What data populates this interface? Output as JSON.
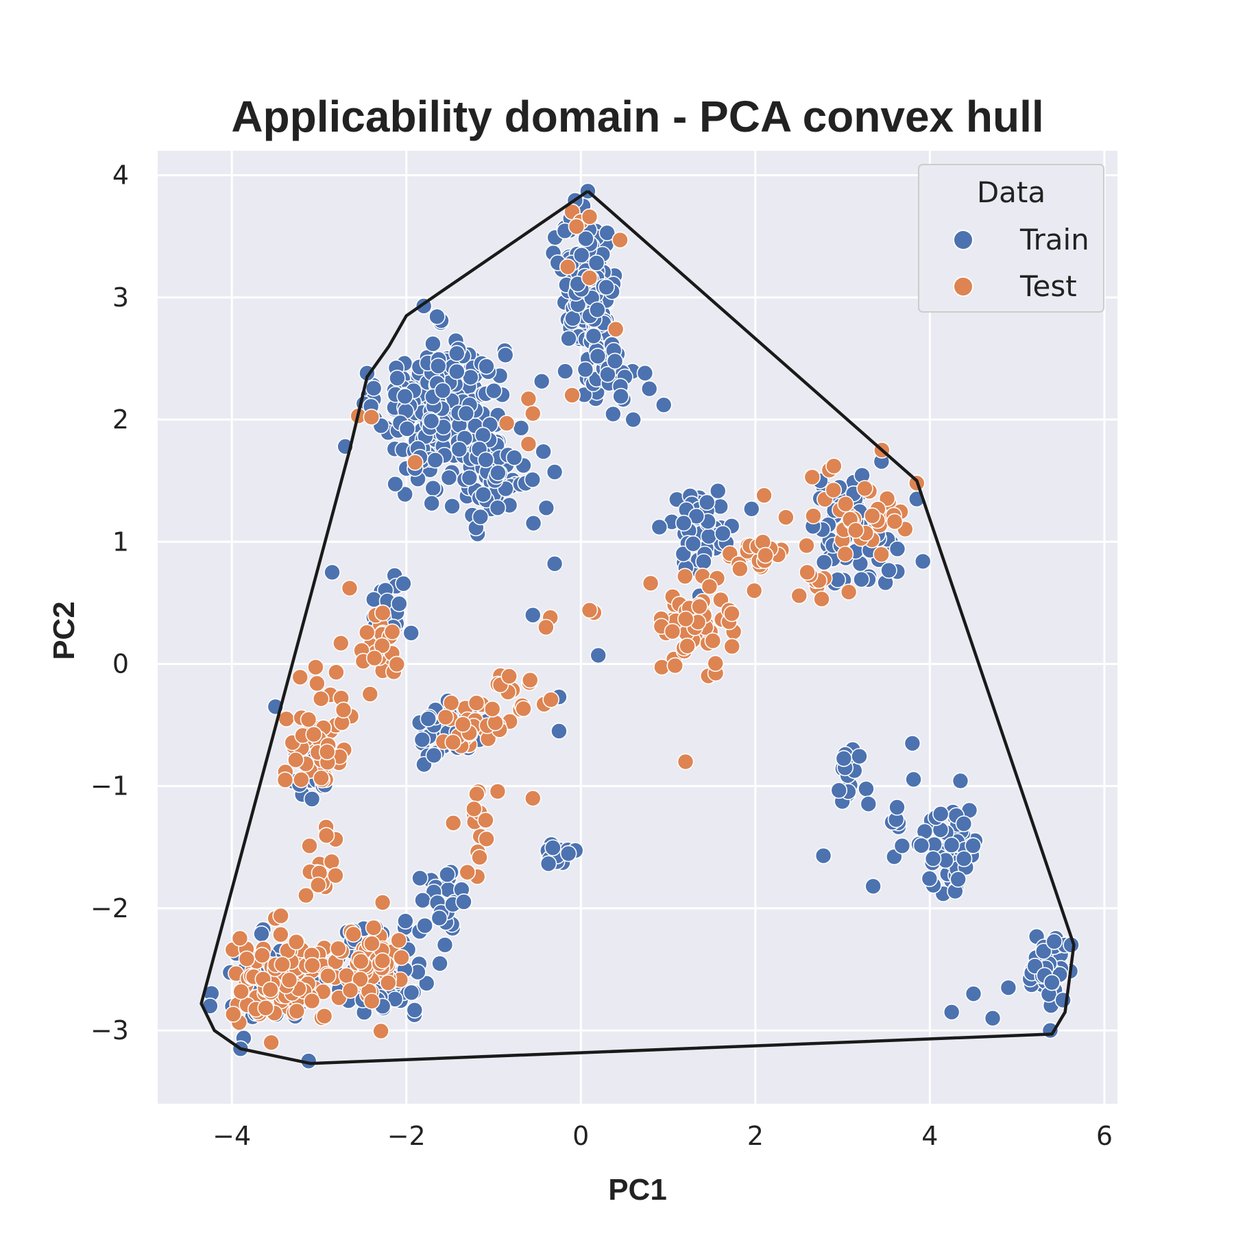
{
  "chart_data": {
    "type": "scatter",
    "title": "Applicability domain - PCA convex hull",
    "xlabel": "PC1",
    "ylabel": "PC2",
    "xlim": [
      -4.85,
      6.15
    ],
    "ylim": [
      -3.6,
      4.2
    ],
    "xticks": [
      -4,
      -2,
      0,
      2,
      4,
      6
    ],
    "xtick_labels": [
      "−4",
      "−2",
      "0",
      "2",
      "4",
      "6"
    ],
    "yticks": [
      -3,
      -2,
      -1,
      0,
      1,
      2,
      3,
      4
    ],
    "ytick_labels": [
      "−3",
      "−2",
      "−1",
      "0",
      "1",
      "2",
      "3",
      "4"
    ],
    "grid": true,
    "background_color": "#eaeaf2",
    "legend": {
      "title": "Data",
      "placement": "top-right",
      "entries": [
        {
          "label": "Train",
          "color": "#4c72b0"
        },
        {
          "label": "Test",
          "color": "#dd8452"
        }
      ]
    },
    "hull": [
      [
        0.08,
        3.87
      ],
      [
        3.85,
        1.5
      ],
      [
        5.65,
        -2.3
      ],
      [
        5.55,
        -2.85
      ],
      [
        5.4,
        -3.03
      ],
      [
        -3.1,
        -3.27
      ],
      [
        -3.9,
        -3.15
      ],
      [
        -4.2,
        -3.0
      ],
      [
        -4.35,
        -2.78
      ],
      [
        -2.65,
        1.75
      ],
      [
        -2.45,
        2.35
      ],
      [
        -2.2,
        2.6
      ],
      [
        -2.0,
        2.85
      ],
      [
        -1.8,
        2.95
      ]
    ],
    "series": [
      {
        "name": "Train",
        "color": "#4c72b0",
        "clusters": [
          {
            "center": [
              -1.6,
              2.1
            ],
            "spread": [
              0.65,
              0.5
            ],
            "count": 260
          },
          {
            "center": [
              -1.0,
              1.5
            ],
            "spread": [
              0.5,
              0.4
            ],
            "count": 60
          },
          {
            "center": [
              0.1,
              3.1
            ],
            "spread": [
              0.28,
              0.45
            ],
            "count": 170
          },
          {
            "center": [
              0.3,
              2.4
            ],
            "spread": [
              0.3,
              0.3
            ],
            "count": 45
          },
          {
            "center": [
              1.4,
              1.1
            ],
            "spread": [
              0.35,
              0.3
            ],
            "count": 55
          },
          {
            "center": [
              3.1,
              1.1
            ],
            "spread": [
              0.45,
              0.4
            ],
            "count": 60
          },
          {
            "center": [
              -2.2,
              0.45
            ],
            "spread": [
              0.2,
              0.3
            ],
            "count": 20
          },
          {
            "center": [
              -1.5,
              -0.55
            ],
            "spread": [
              0.35,
              0.2
            ],
            "count": 45
          },
          {
            "center": [
              -0.25,
              -1.55
            ],
            "spread": [
              0.12,
              0.15
            ],
            "count": 18
          },
          {
            "center": [
              -2.3,
              -2.5
            ],
            "spread": [
              0.6,
              0.35
            ],
            "count": 70
          },
          {
            "center": [
              -3.6,
              -2.6
            ],
            "spread": [
              0.5,
              0.3
            ],
            "count": 40
          },
          {
            "center": [
              -1.6,
              -2.0
            ],
            "spread": [
              0.3,
              0.35
            ],
            "count": 25
          },
          {
            "center": [
              4.3,
              -1.5
            ],
            "spread": [
              0.25,
              0.35
            ],
            "count": 50
          },
          {
            "center": [
              5.35,
              -2.5
            ],
            "spread": [
              0.18,
              0.2
            ],
            "count": 70
          },
          {
            "center": [
              3.1,
              -0.9
            ],
            "spread": [
              0.2,
              0.3
            ],
            "count": 18
          },
          {
            "center": [
              3.7,
              -1.4
            ],
            "spread": [
              0.3,
              0.35
            ],
            "count": 15
          },
          {
            "center": [
              -3.1,
              -0.9
            ],
            "spread": [
              0.25,
              0.25
            ],
            "count": 25
          }
        ],
        "points": [
          [
            0.08,
            3.87
          ],
          [
            -1.8,
            2.93
          ],
          [
            -2.45,
            2.38
          ],
          [
            -2.7,
            1.78
          ],
          [
            -2.0,
            1.6
          ],
          [
            0.95,
            2.12
          ],
          [
            0.6,
            2.0
          ],
          [
            0.2,
            0.07
          ],
          [
            -0.25,
            -0.27
          ],
          [
            -0.25,
            -0.55
          ],
          [
            -3.5,
            -0.35
          ],
          [
            -0.55,
            0.4
          ],
          [
            -0.3,
            0.82
          ],
          [
            0.9,
            1.12
          ],
          [
            3.92,
            0.84
          ],
          [
            3.85,
            1.35
          ],
          [
            3.8,
            -0.65
          ],
          [
            3.35,
            -1.82
          ],
          [
            2.78,
            -1.57
          ],
          [
            5.38,
            -3.0
          ],
          [
            5.62,
            -2.3
          ],
          [
            -3.12,
            -3.25
          ],
          [
            -3.9,
            -3.15
          ],
          [
            -4.25,
            -2.8
          ],
          [
            4.25,
            -2.85
          ],
          [
            4.72,
            -2.9
          ],
          [
            4.5,
            -2.7
          ],
          [
            4.9,
            -2.65
          ],
          [
            -2.85,
            0.75
          ],
          [
            -1.9,
            1.6
          ]
        ]
      },
      {
        "name": "Test",
        "color": "#dd8452",
        "clusters": [
          {
            "center": [
              1.35,
              0.35
            ],
            "spread": [
              0.35,
              0.3
            ],
            "count": 60
          },
          {
            "center": [
              2.0,
              0.85
            ],
            "spread": [
              0.3,
              0.2
            ],
            "count": 20
          },
          {
            "center": [
              3.2,
              1.25
            ],
            "spread": [
              0.45,
              0.3
            ],
            "count": 35
          },
          {
            "center": [
              -2.3,
              0.15
            ],
            "spread": [
              0.25,
              0.3
            ],
            "count": 25
          },
          {
            "center": [
              -3.0,
              -0.6
            ],
            "spread": [
              0.35,
              0.4
            ],
            "count": 50
          },
          {
            "center": [
              -3.4,
              -2.6
            ],
            "spread": [
              0.55,
              0.3
            ],
            "count": 110
          },
          {
            "center": [
              -2.4,
              -2.5
            ],
            "spread": [
              0.35,
              0.3
            ],
            "count": 50
          },
          {
            "center": [
              -1.3,
              -0.5
            ],
            "spread": [
              0.5,
              0.2
            ],
            "count": 25
          },
          {
            "center": [
              -0.75,
              -0.25
            ],
            "spread": [
              0.3,
              0.2
            ],
            "count": 15
          },
          {
            "center": [
              -1.2,
              -1.3
            ],
            "spread": [
              0.3,
              0.35
            ],
            "count": 15
          },
          {
            "center": [
              -2.9,
              -1.6
            ],
            "spread": [
              0.25,
              0.3
            ],
            "count": 15
          },
          {
            "center": [
              2.7,
              0.7
            ],
            "spread": [
              0.25,
              0.25
            ],
            "count": 10
          }
        ],
        "points": [
          [
            -0.1,
            3.7
          ],
          [
            0.0,
            3.62
          ],
          [
            0.1,
            3.66
          ],
          [
            -0.05,
            3.58
          ],
          [
            0.45,
            3.47
          ],
          [
            -0.15,
            3.25
          ],
          [
            0.1,
            3.16
          ],
          [
            0.4,
            2.74
          ],
          [
            -0.6,
            2.17
          ],
          [
            -0.85,
            1.97
          ],
          [
            -0.55,
            2.05
          ],
          [
            -0.6,
            1.8
          ],
          [
            -0.1,
            2.2
          ],
          [
            -1.9,
            1.65
          ],
          [
            -2.55,
            2.03
          ],
          [
            -2.4,
            2.02
          ],
          [
            0.15,
            0.42
          ],
          [
            0.1,
            0.44
          ],
          [
            -0.35,
            0.38
          ],
          [
            -0.4,
            0.3
          ],
          [
            0.8,
            0.66
          ],
          [
            1.2,
            -0.8
          ],
          [
            2.1,
            1.38
          ],
          [
            2.35,
            1.2
          ],
          [
            3.45,
            1.75
          ],
          [
            3.85,
            1.48
          ],
          [
            2.9,
            1.62
          ],
          [
            -2.65,
            0.62
          ],
          [
            -2.75,
            0.17
          ],
          [
            -0.55,
            -1.1
          ]
        ]
      }
    ]
  }
}
